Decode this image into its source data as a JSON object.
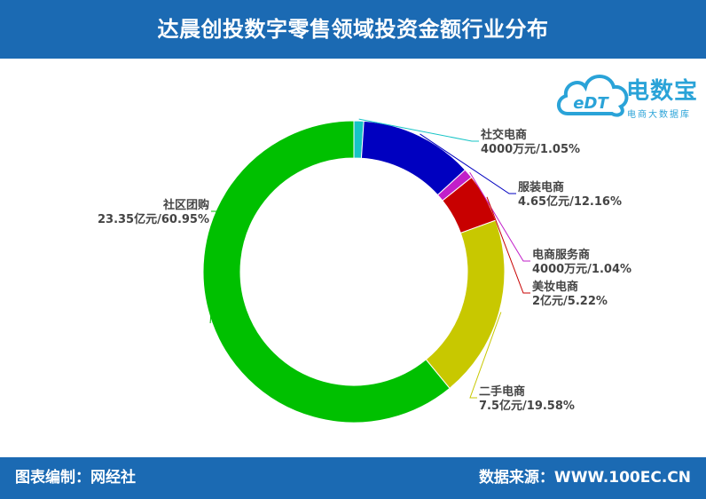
{
  "header": {
    "title": "达晨创投数字零售领域投资金额行业分布"
  },
  "footer": {
    "left": "图表编制：网经社",
    "right": "数据来源：WWW.100EC.CN"
  },
  "logo": {
    "mark": "eDT",
    "brand": "电数宝",
    "tagline": "电商大数据库"
  },
  "chart_data": {
    "type": "pie",
    "style": "donut",
    "unit_note": "amount / share",
    "slices": [
      {
        "name": "社交电商",
        "amount": "4000万元",
        "percent": 1.05,
        "label_amount": "4000万元/1.05%",
        "color": "#17c4c6"
      },
      {
        "name": "服装电商",
        "amount": "4.65亿元",
        "percent": 12.16,
        "label_amount": "4.65亿元/12.16%",
        "color": "#0000c0"
      },
      {
        "name": "电商服务商",
        "amount": "4000万元",
        "percent": 1.04,
        "label_amount": "4000万元/1.04%",
        "color": "#c21fc9"
      },
      {
        "name": "美妆电商",
        "amount": "2亿元",
        "percent": 5.22,
        "label_amount": "2亿元/5.22%",
        "color": "#c80000"
      },
      {
        "name": "二手电商",
        "amount": "7.5亿元",
        "percent": 19.58,
        "label_amount": "7.5亿元/19.58%",
        "color": "#c8c800"
      },
      {
        "name": "社区团购",
        "amount": "23.35亿元",
        "percent": 60.95,
        "label_amount": "23.35亿元/60.95%",
        "color": "#00c000"
      }
    ]
  }
}
